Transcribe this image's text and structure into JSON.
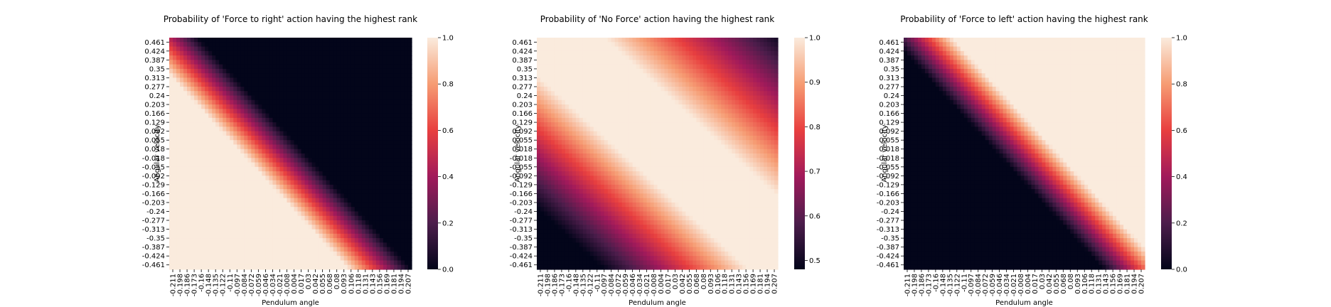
{
  "chart_data": [
    {
      "type": "heatmap",
      "title": "Probability of 'Force to right' action having the highest rank",
      "xlabel": "Pendulum angle",
      "ylabel": "Angular velocity",
      "x_ticks": [
        "-0.211",
        "-0.198",
        "-0.186",
        "-0.173",
        "-0.16",
        "-0.148",
        "-0.135",
        "-0.122",
        "-0.11",
        "-0.097",
        "-0.084",
        "-0.072",
        "-0.059",
        "-0.046",
        "-0.034",
        "-0.021",
        "-0.008",
        "0.004",
        "0.017",
        "0.03",
        "0.042",
        "0.055",
        "0.068",
        "0.08",
        "0.093",
        "0.106",
        "0.118",
        "0.131",
        "0.143",
        "0.156",
        "0.169",
        "0.181",
        "0.194",
        "0.207"
      ],
      "y_ticks": [
        "0.461",
        "0.424",
        "0.387",
        "0.35",
        "0.313",
        "0.277",
        "0.24",
        "0.203",
        "0.166",
        "0.129",
        "0.092",
        "0.055",
        "0.018",
        "-0.018",
        "-0.055",
        "-0.092",
        "-0.129",
        "-0.166",
        "-0.203",
        "-0.24",
        "-0.277",
        "-0.313",
        "-0.35",
        "-0.387",
        "-0.424",
        "-0.461"
      ],
      "colorbar": {
        "ticks": [
          "0.0",
          "0.2",
          "0.4",
          "0.6",
          "0.8",
          "1.0"
        ],
        "range": [
          0.0,
          1.0
        ]
      },
      "pattern": "probability 1.0 in the lower-left region, descending through a band and 0.0 in the upper-right region"
    },
    {
      "type": "heatmap",
      "title": "Probability of 'No Force' action having the highest rank",
      "xlabel": "Pendulum angle",
      "ylabel": "Angular velocity",
      "x_ticks": [
        "-0.211",
        "-0.198",
        "-0.186",
        "-0.173",
        "-0.16",
        "-0.148",
        "-0.135",
        "-0.122",
        "-0.11",
        "-0.097",
        "-0.084",
        "-0.072",
        "-0.059",
        "-0.046",
        "-0.034",
        "-0.021",
        "-0.008",
        "0.004",
        "0.017",
        "0.03",
        "0.042",
        "0.055",
        "0.068",
        "0.08",
        "0.093",
        "0.106",
        "0.118",
        "0.131",
        "0.143",
        "0.156",
        "0.169",
        "0.181",
        "0.194",
        "0.207"
      ],
      "y_ticks": [
        "0.461",
        "0.424",
        "0.387",
        "0.35",
        "0.313",
        "0.277",
        "0.24",
        "0.203",
        "0.166",
        "0.129",
        "0.092",
        "0.055",
        "0.018",
        "-0.018",
        "-0.055",
        "-0.092",
        "-0.129",
        "-0.166",
        "-0.203",
        "-0.24",
        "-0.277",
        "-0.313",
        "-0.35",
        "-0.387",
        "-0.424",
        "-0.461"
      ],
      "colorbar": {
        "ticks": [
          "0.5",
          "0.6",
          "0.7",
          "0.8",
          "0.9",
          "1.0"
        ],
        "range": [
          0.48,
          1.0
        ]
      },
      "pattern": "diagonal band of probability 1.0 from upper-left to lower-right, lower values in the lower-left and upper-right corners"
    },
    {
      "type": "heatmap",
      "title": "Probability of 'Force to left' action having the highest rank",
      "xlabel": "Pendulum angle",
      "ylabel": "Angular velocity",
      "x_ticks": [
        "-0.211",
        "-0.198",
        "-0.186",
        "-0.173",
        "-0.16",
        "-0.148",
        "-0.135",
        "-0.122",
        "-0.11",
        "-0.097",
        "-0.084",
        "-0.072",
        "-0.059",
        "-0.046",
        "-0.034",
        "-0.021",
        "-0.008",
        "0.004",
        "0.017",
        "0.03",
        "0.042",
        "0.055",
        "0.068",
        "0.08",
        "0.093",
        "0.106",
        "0.118",
        "0.131",
        "0.143",
        "0.156",
        "0.169",
        "0.181",
        "0.194",
        "0.207"
      ],
      "y_ticks": [
        "0.461",
        "0.424",
        "0.387",
        "0.35",
        "0.313",
        "0.277",
        "0.24",
        "0.203",
        "0.166",
        "0.129",
        "0.092",
        "0.055",
        "0.018",
        "-0.018",
        "-0.055",
        "-0.092",
        "-0.129",
        "-0.166",
        "-0.203",
        "-0.24",
        "-0.277",
        "-0.313",
        "-0.35",
        "-0.387",
        "-0.424",
        "-0.461"
      ],
      "colorbar": {
        "ticks": [
          "0.0",
          "0.2",
          "0.4",
          "0.6",
          "0.8",
          "1.0"
        ],
        "range": [
          0.0,
          1.0
        ]
      },
      "pattern": "probability 0.0 in the lower-left region, rising through a band to 1.0 in the upper-right region"
    }
  ]
}
